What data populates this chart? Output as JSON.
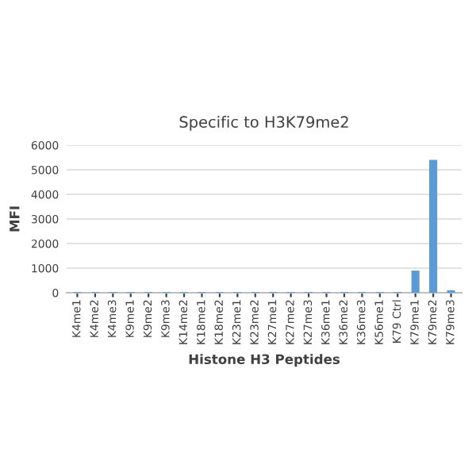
{
  "chart_data": {
    "type": "bar",
    "title": "Specific to H3K79me2",
    "xlabel": "Histone H3 Peptides",
    "ylabel": "MFI",
    "categories": [
      "K4me1",
      "K4me2",
      "K4me3",
      "K9me1",
      "K9me2",
      "K9me3",
      "K14me2",
      "K18me1",
      "K18me2",
      "K23me1",
      "K23me2",
      "K27me1",
      "K27me2",
      "K27me3",
      "K36me1",
      "K36me2",
      "K36me3",
      "K56me1",
      "K79 Ctrl",
      "K79me1",
      "K79me2",
      "K79me3"
    ],
    "values": [
      30,
      30,
      30,
      30,
      30,
      30,
      30,
      30,
      30,
      30,
      30,
      30,
      30,
      30,
      30,
      30,
      30,
      30,
      30,
      900,
      5400,
      100
    ],
    "color": "#5b9bd5",
    "ylim": [
      0,
      6000
    ],
    "yticks": [
      0,
      1000,
      2000,
      3000,
      4000,
      5000,
      6000
    ],
    "grid": "y",
    "legend": false
  }
}
